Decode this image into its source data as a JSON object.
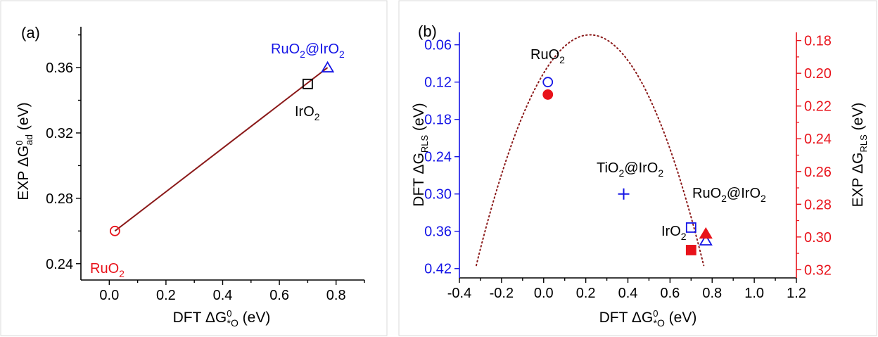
{
  "chart_data": [
    {
      "type": "scatter",
      "panel_label": "(a)",
      "xlabel": "DFT ΔG⁰*O (eV)",
      "ylabel": "EXP ΔG⁰ad (eV)",
      "xlim": [
        -0.1,
        0.9
      ],
      "ylim": [
        0.23,
        0.385
      ],
      "x_ticks": [
        "0.0",
        "0.2",
        "0.4",
        "0.6",
        "0.8"
      ],
      "y_ticks": [
        "0.24",
        "0.28",
        "0.32",
        "0.36"
      ],
      "points": [
        {
          "label": "RuO2",
          "x": 0.02,
          "y": 0.26,
          "marker": "circle",
          "color": "#e8121a"
        },
        {
          "label": "IrO2",
          "x": 0.7,
          "y": 0.35,
          "marker": "square",
          "color": "#000000"
        },
        {
          "label": "RuO2@IrO2",
          "x": 0.77,
          "y": 0.36,
          "marker": "triangle",
          "color": "#1414e6"
        }
      ],
      "fit_line": {
        "x": [
          0.02,
          0.77
        ],
        "y": [
          0.26,
          0.36
        ],
        "color": "#8b1a1a"
      }
    },
    {
      "type": "scatter",
      "panel_label": "(b)",
      "xlabel": "DFT ΔG⁰*O (eV)",
      "ylabel_left": "DFT ΔGRLS (eV)",
      "ylabel_right": "EXP ΔGRLS (eV)",
      "xlim": [
        -0.4,
        1.2
      ],
      "ylim_left": [
        0.04,
        0.435
      ],
      "ylim_right": [
        0.175,
        0.325
      ],
      "left_axis_inverted": true,
      "right_axis_inverted": true,
      "left_color": "#1414e6",
      "right_color": "#e8121a",
      "x_ticks": [
        "-0.4",
        "-0.2",
        "0.0",
        "0.2",
        "0.4",
        "0.6",
        "0.8",
        "1.0",
        "1.2"
      ],
      "y_ticks_left": [
        "0.06",
        "0.12",
        "0.18",
        "0.24",
        "0.30",
        "0.36",
        "0.42"
      ],
      "y_ticks_right": [
        "0.18",
        "0.20",
        "0.22",
        "0.24",
        "0.26",
        "0.28",
        "0.30",
        "0.32"
      ],
      "dft_points": [
        {
          "label": "RuO2",
          "x": 0.02,
          "y": 0.12,
          "marker": "circle-open"
        },
        {
          "label": "TiO2@IrO2",
          "x": 0.38,
          "y": 0.3,
          "marker": "plus"
        },
        {
          "label": "IrO2",
          "x": 0.7,
          "y": 0.354,
          "marker": "square-open"
        },
        {
          "label": "RuO2@IrO2",
          "x": 0.77,
          "y": 0.375,
          "marker": "triangle-open"
        }
      ],
      "exp_points": [
        {
          "x": 0.02,
          "y": 0.213,
          "marker": "circle-filled"
        },
        {
          "x": 0.7,
          "y": 0.308,
          "marker": "square-filled"
        },
        {
          "x": 0.77,
          "y": 0.298,
          "marker": "triangle-filled"
        }
      ],
      "volcano_curve": {
        "apex_x": 0.22,
        "apex_y": 0.044,
        "left_x": -0.32,
        "right_x": 0.76,
        "end_y": 0.415,
        "style": "dotted",
        "color": "#8b1a1a"
      }
    }
  ]
}
